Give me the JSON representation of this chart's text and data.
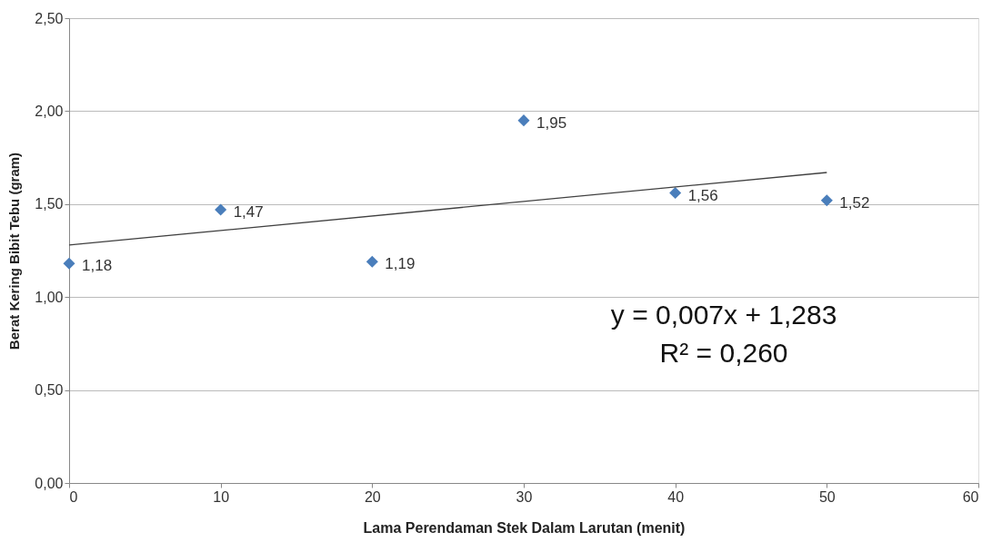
{
  "chart_data": {
    "type": "scatter",
    "xlabel": "Lama Perendaman Stek Dalam Larutan (menit)",
    "ylabel": "Berat Kering Bibit Tebu (gram)",
    "x": [
      0,
      10,
      20,
      30,
      40,
      50
    ],
    "series": [
      {
        "color": "#4a7ebb",
        "marker": "diamond",
        "values": [
          1.18,
          1.47,
          1.19,
          1.95,
          1.56,
          1.52
        ],
        "value_labels": [
          "1,18",
          "1,47",
          "1,19",
          "1,95",
          "1,56",
          "1,52"
        ]
      },
      {
        "type": "line",
        "color": "#404040",
        "marker": "none",
        "x": [
          0,
          50
        ],
        "values": [
          1.28,
          1.67
        ]
      }
    ],
    "annotations": [
      "y = 0,007x + 1,283",
      "R² = 0,260"
    ],
    "xlim": [
      0,
      60
    ],
    "xticks": [
      0,
      10,
      20,
      30,
      40,
      50,
      60
    ],
    "ylim": [
      0,
      2.5
    ],
    "yticks": [
      {
        "value": 0,
        "label": "0,00"
      },
      {
        "value": 0.5,
        "label": "0,50"
      },
      {
        "value": 1,
        "label": "1,00"
      },
      {
        "value": 1.5,
        "label": "1,50"
      },
      {
        "value": 2,
        "label": "2,00"
      },
      {
        "value": 2.5,
        "label": "2,50"
      }
    ],
    "grid": "y"
  }
}
